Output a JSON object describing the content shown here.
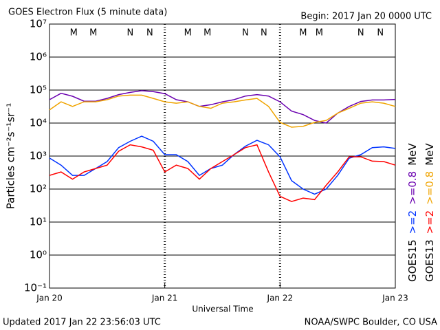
{
  "chart_data": {
    "type": "line",
    "title": "GOES Electron Flux (5 minute data)",
    "subtitle": "Begin: 2017 Jan 20 0000 UTC",
    "xlabel": "Universal Time",
    "ylabel": "Particles cm⁻²s⁻¹sr⁻¹",
    "footer_left": "Updated 2017 Jan 22 23:56:03 UTC",
    "footer_right": "NOAA/SWPC Boulder, CO USA",
    "log_y": true,
    "grid": true,
    "threshold": 1000,
    "xlim": [
      0,
      3
    ],
    "xticks": [
      {
        "value": 0,
        "label": "Jan 20"
      },
      {
        "value": 1,
        "label": "Jan 21"
      },
      {
        "value": 2,
        "label": "Jan 22"
      },
      {
        "value": 3,
        "label": "Jan 23"
      }
    ],
    "ylim": [
      0.1,
      10000000
    ],
    "yticks": [
      {
        "value": 0.1,
        "label": "10⁻¹"
      },
      {
        "value": 1,
        "label": "10⁰"
      },
      {
        "value": 10,
        "label": "10¹"
      },
      {
        "value": 100,
        "label": "10²"
      },
      {
        "value": 1000,
        "label": "10³"
      },
      {
        "value": 10000,
        "label": "10⁴"
      },
      {
        "value": 100000,
        "label": "10⁵"
      },
      {
        "value": 1000000,
        "label": "10⁶"
      },
      {
        "value": 10000000,
        "label": "10⁷"
      }
    ],
    "x": [
      0,
      0.1,
      0.2,
      0.3,
      0.4,
      0.5,
      0.6,
      0.7,
      0.8,
      0.9,
      1,
      1.1,
      1.2,
      1.3,
      1.4,
      1.5,
      1.6,
      1.7,
      1.8,
      1.9,
      2,
      2.1,
      2.2,
      2.3,
      2.4,
      2.5,
      2.6,
      2.7,
      2.8,
      2.9,
      3
    ],
    "unit": "MeV",
    "legend": [
      {
        "label": "GOES15",
        "series": [
          2,
          0
        ]
      },
      {
        "label": "GOES13",
        "series": [
          3,
          1
        ]
      }
    ],
    "series": [
      {
        "name": ">=0.8",
        "color": "#6a00b0",
        "values": [
          51000,
          80000,
          65000,
          46000,
          46000,
          56000,
          73000,
          85000,
          96000,
          90000,
          78000,
          51000,
          44000,
          32000,
          36000,
          44000,
          51000,
          66000,
          73000,
          66000,
          44000,
          23000,
          18000,
          12000,
          10000,
          20000,
          32000,
          45000,
          50000,
          50000,
          52000
        ]
      },
      {
        "name": ">=0.8",
        "color": "#f0a400",
        "values": [
          25000,
          44000,
          32000,
          44000,
          44000,
          51000,
          66000,
          70000,
          70000,
          56000,
          44000,
          40000,
          44000,
          32000,
          28000,
          40000,
          44000,
          50000,
          56000,
          32000,
          10500,
          7500,
          8000,
          10500,
          12000,
          20000,
          28000,
          40000,
          44000,
          40000,
          32000
        ]
      },
      {
        "name": ">=2",
        "color": "#0033ff",
        "values": [
          870,
          530,
          260,
          260,
          420,
          680,
          1800,
          2800,
          4000,
          2800,
          1100,
          1100,
          680,
          260,
          420,
          530,
          1100,
          2000,
          3000,
          2200,
          950,
          180,
          100,
          70,
          100,
          260,
          860,
          1100,
          1800,
          1900,
          1700
        ]
      },
      {
        "name": ">=2",
        "color": "#ff0000",
        "values": [
          260,
          330,
          200,
          330,
          420,
          530,
          1400,
          2200,
          1900,
          1500,
          330,
          530,
          420,
          200,
          420,
          680,
          1100,
          1800,
          2200,
          330,
          60,
          42,
          53,
          48,
          130,
          330,
          950,
          950,
          700,
          680,
          530
        ]
      }
    ],
    "markers": [
      {
        "label": "M",
        "x": 0.21,
        "color": "#ff0000"
      },
      {
        "label": "M",
        "x": 0.38,
        "color": "#0000ff"
      },
      {
        "label": "N",
        "x": 0.7,
        "color": "#ff0000"
      },
      {
        "label": "N",
        "x": 0.87,
        "color": "#0000ff"
      },
      {
        "label": "M",
        "x": 1.2,
        "color": "#ff0000"
      },
      {
        "label": "M",
        "x": 1.37,
        "color": "#0000ff"
      },
      {
        "label": "N",
        "x": 1.7,
        "color": "#ff0000"
      },
      {
        "label": "N",
        "x": 1.86,
        "color": "#0000ff"
      },
      {
        "label": "M",
        "x": 2.2,
        "color": "#ff0000"
      },
      {
        "label": "M",
        "x": 2.34,
        "color": "#0000ff"
      },
      {
        "label": "N",
        "x": 2.7,
        "color": "#ff0000"
      },
      {
        "label": "N",
        "x": 2.87,
        "color": "#0000ff"
      }
    ]
  }
}
